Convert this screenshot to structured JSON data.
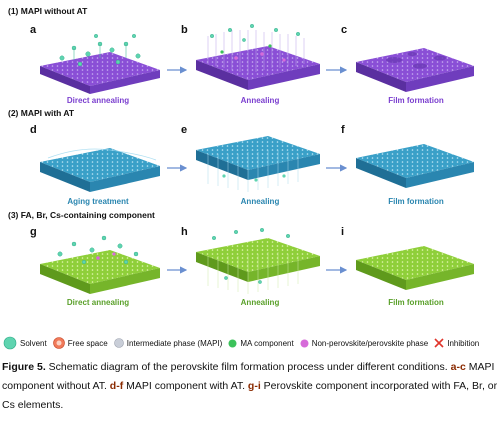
{
  "sections": [
    {
      "title": "(1)  MAPI without AT"
    },
    {
      "title": "(2) MAPI with AT"
    },
    {
      "title": "(3) FA, Br, Cs-containing component"
    }
  ],
  "panels": [
    {
      "letter": "a",
      "caption": "Direct annealing"
    },
    {
      "letter": "b",
      "caption": "Annealing"
    },
    {
      "letter": "c",
      "caption": "Film formation"
    },
    {
      "letter": "d",
      "caption": "Aging treatment"
    },
    {
      "letter": "e",
      "caption": "Annealing"
    },
    {
      "letter": "f",
      "caption": "Film formation"
    },
    {
      "letter": "g",
      "caption": "Direct annealing"
    },
    {
      "letter": "h",
      "caption": "Annealing"
    },
    {
      "letter": "i",
      "caption": "Film formation"
    }
  ],
  "legend": [
    {
      "label": "Solvent",
      "icon": "solvent-sphere"
    },
    {
      "label": "Free space",
      "icon": "free-space-sphere"
    },
    {
      "label": "Intermediate phase (MAPI)",
      "icon": "intermediate-phase-sphere"
    },
    {
      "label": "MA component",
      "icon": "ma-component-sphere"
    },
    {
      "label": "Non-perovskite/perovskite phase",
      "icon": "non-perovskite-sphere"
    },
    {
      "label": "Inhibition",
      "icon": "inhibition-cross"
    }
  ],
  "caption": {
    "fig_label": "Figure 5.",
    "part1": " Schematic diagram of the perovskite film formation process under different conditions. ",
    "ref_ac": "a-c",
    "part2": " MAPI component without AT. ",
    "ref_df": "d-f",
    "part3": " MAPI component with AT. ",
    "ref_gi": "g-i",
    "part4": " Perovskite component incorporated with FA, Br, or Cs elements."
  },
  "colors": {
    "purple": "#8a4fd6",
    "blue": "#3aa0c8",
    "green": "#8fcf3a",
    "caption_text": "#5b3fbf",
    "arrow": "#6a8fd0"
  }
}
